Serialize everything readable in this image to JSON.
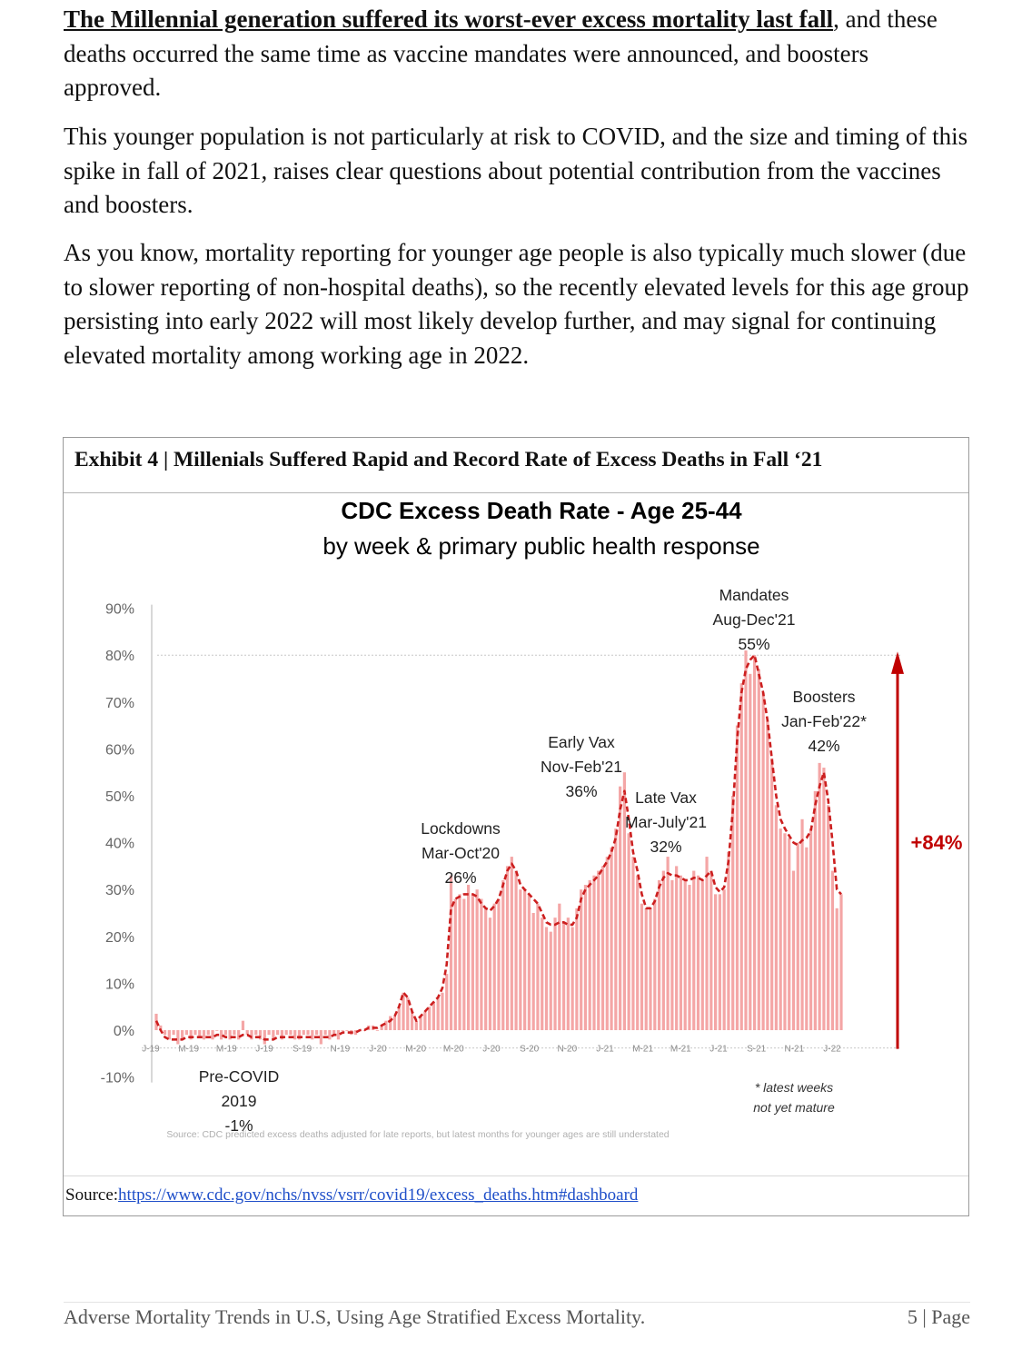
{
  "paragraphs": {
    "p1_lead": "The Millennial generation suffered its worst-ever excess mortality last fall",
    "p1_rest": ", and these deaths occurred the same time as vaccine mandates were announced, and boosters approved.",
    "p2": "This younger population is not particularly at risk to COVID, and the size and timing of this spike in fall of 2021, raises clear questions about potential contribution from the vaccines and boosters.",
    "p3": "As you know, mortality reporting for younger age people is also typically much slower (due to slower reporting of non-hospital deaths), so the recently elevated levels for this age group persisting into early 2022 will most likely develop further, and may signal for continuing elevated mortality among working age in 2022."
  },
  "exhibit": {
    "title": "Exhibit 4 | Millenials Suffered Rapid and Record Rate of Excess Deaths in Fall ‘21",
    "source_label": "Source:",
    "source_url": "https://www.cdc.gov/nchs/nvss/vsrr/covid19/excess_deaths.htm#dashboard"
  },
  "chart_data": {
    "type": "bar",
    "title": "CDC Excess Death Rate - Age 25-44",
    "subtitle": "by week & primary public health response",
    "xlabel": "",
    "ylabel": "",
    "ylim": [
      -10,
      90
    ],
    "y_ticks": [
      "90%",
      "80%",
      "70%",
      "60%",
      "50%",
      "40%",
      "30%",
      "20%",
      "10%",
      "0%",
      "-10%"
    ],
    "x_tick_labels": [
      "J-19",
      "M-19",
      "M-19",
      "J-19",
      "S-19",
      "N-19",
      "J-20",
      "M-20",
      "M-20",
      "J-20",
      "S-20",
      "N-20",
      "J-21",
      "M-21",
      "M-21",
      "J-21",
      "S-21",
      "N-21",
      "J-22"
    ],
    "weekly_values": [
      3.5,
      1,
      -1,
      -2,
      -1,
      -3,
      -2,
      -1,
      -2,
      -1,
      -1.5,
      -2,
      -1,
      -2,
      0,
      -2,
      -1,
      -2,
      -1,
      -2,
      2,
      -1,
      -2,
      -1,
      -2,
      -3,
      -1,
      -2,
      -1,
      -2,
      -1,
      -1,
      -2,
      -2,
      -1,
      -1,
      -2,
      -1,
      -3,
      -1,
      -2,
      -1,
      -2,
      0,
      0,
      -1,
      -1,
      0,
      0,
      1,
      1,
      0,
      1,
      2,
      3,
      3,
      5,
      8,
      7,
      4,
      2,
      3,
      4,
      5,
      6,
      7,
      8,
      12,
      33,
      28,
      29,
      28,
      31,
      29,
      30,
      28,
      26,
      24,
      27,
      28,
      32,
      35,
      37,
      34,
      30,
      30,
      29,
      25,
      27,
      24,
      22,
      21,
      24,
      27,
      23,
      24,
      22,
      26,
      30,
      31,
      32,
      33,
      34,
      35,
      37,
      39,
      43,
      52,
      55,
      42,
      37,
      33,
      27,
      26,
      26,
      28,
      32,
      34,
      37,
      32,
      35,
      33,
      32,
      31,
      34,
      33,
      32,
      37,
      34,
      29,
      29,
      30,
      38,
      50,
      65,
      74,
      81,
      76,
      80,
      77,
      72,
      66,
      58,
      48,
      43,
      42,
      41,
      34,
      40,
      45,
      39,
      43,
      51,
      57,
      56,
      48,
      34,
      26,
      29
    ],
    "trend_values": [
      2,
      0,
      -1.5,
      -2,
      -2,
      -2,
      -2,
      -1.5,
      -1.5,
      -1.5,
      -1.5,
      -1.5,
      -1.5,
      -1.5,
      -1,
      -1,
      -1.5,
      -1.5,
      -1.5,
      -1.5,
      -1,
      -1,
      -1.5,
      -1.5,
      -1.5,
      -2,
      -2,
      -2,
      -1.5,
      -1.5,
      -1.5,
      -1.5,
      -1.5,
      -1.5,
      -1.5,
      -1.5,
      -1.5,
      -1.5,
      -1.5,
      -1.5,
      -1.5,
      -1,
      -1,
      -0.5,
      -0.5,
      -0.5,
      -0.5,
      0,
      0,
      0.5,
      0.5,
      0.5,
      1,
      1.5,
      2,
      3,
      5,
      8,
      7,
      4,
      2,
      3,
      4,
      5,
      6,
      7,
      9,
      14,
      26,
      28,
      28.5,
      29,
      29,
      29,
      28.5,
      27,
      26,
      25.5,
      26.5,
      28,
      31,
      34,
      35.5,
      34,
      31,
      30,
      29,
      28,
      27,
      25,
      23,
      22.5,
      22.5,
      23,
      23,
      22.5,
      22.5,
      24,
      28,
      30,
      31,
      32,
      33,
      34.5,
      36,
      38,
      41,
      47,
      51,
      45,
      38,
      34,
      29,
      26,
      26,
      27.5,
      30.5,
      32.5,
      33.5,
      33,
      33,
      32.5,
      32,
      32,
      32.5,
      32.5,
      32,
      33,
      34,
      30.5,
      29.5,
      30.5,
      36,
      47,
      62,
      72,
      77,
      79,
      80,
      76,
      72,
      66,
      58,
      50,
      45,
      43,
      41.5,
      40,
      39.5,
      40.5,
      41,
      42.5,
      48,
      52,
      55,
      49,
      40,
      30,
      29
    ],
    "annotations": [
      {
        "lines": [
          "Pre-COVID",
          "2019",
          "-1%"
        ]
      },
      {
        "lines": [
          "Lockdowns",
          "Mar-Oct'20",
          "26%"
        ]
      },
      {
        "lines": [
          "Early Vax",
          "Nov-Feb'21",
          "36%"
        ]
      },
      {
        "lines": [
          "Late Vax",
          "Mar-July'21",
          "32%"
        ]
      },
      {
        "lines": [
          "Mandates",
          "Aug-Dec'21",
          "55%"
        ]
      },
      {
        "lines": [
          "Boosters",
          "Jan-Feb'22*",
          "42%"
        ]
      }
    ],
    "arrow_label": "+84%",
    "footnote": [
      "* latest weeks",
      "not yet mature"
    ],
    "source_note": "Source: CDC predicted excess deaths adjusted for late reports, but latest months for younger ages are still understated",
    "colors": {
      "bars": "#f4a6a6",
      "trend": "#cc1f1f",
      "arrow": "#c00000",
      "axis_text": "#666666",
      "title": "#595959"
    }
  },
  "footer": {
    "left": "Adverse Mortality Trends in U.S, Using Age Stratified Excess Mortality.",
    "right": "5 | Page"
  }
}
